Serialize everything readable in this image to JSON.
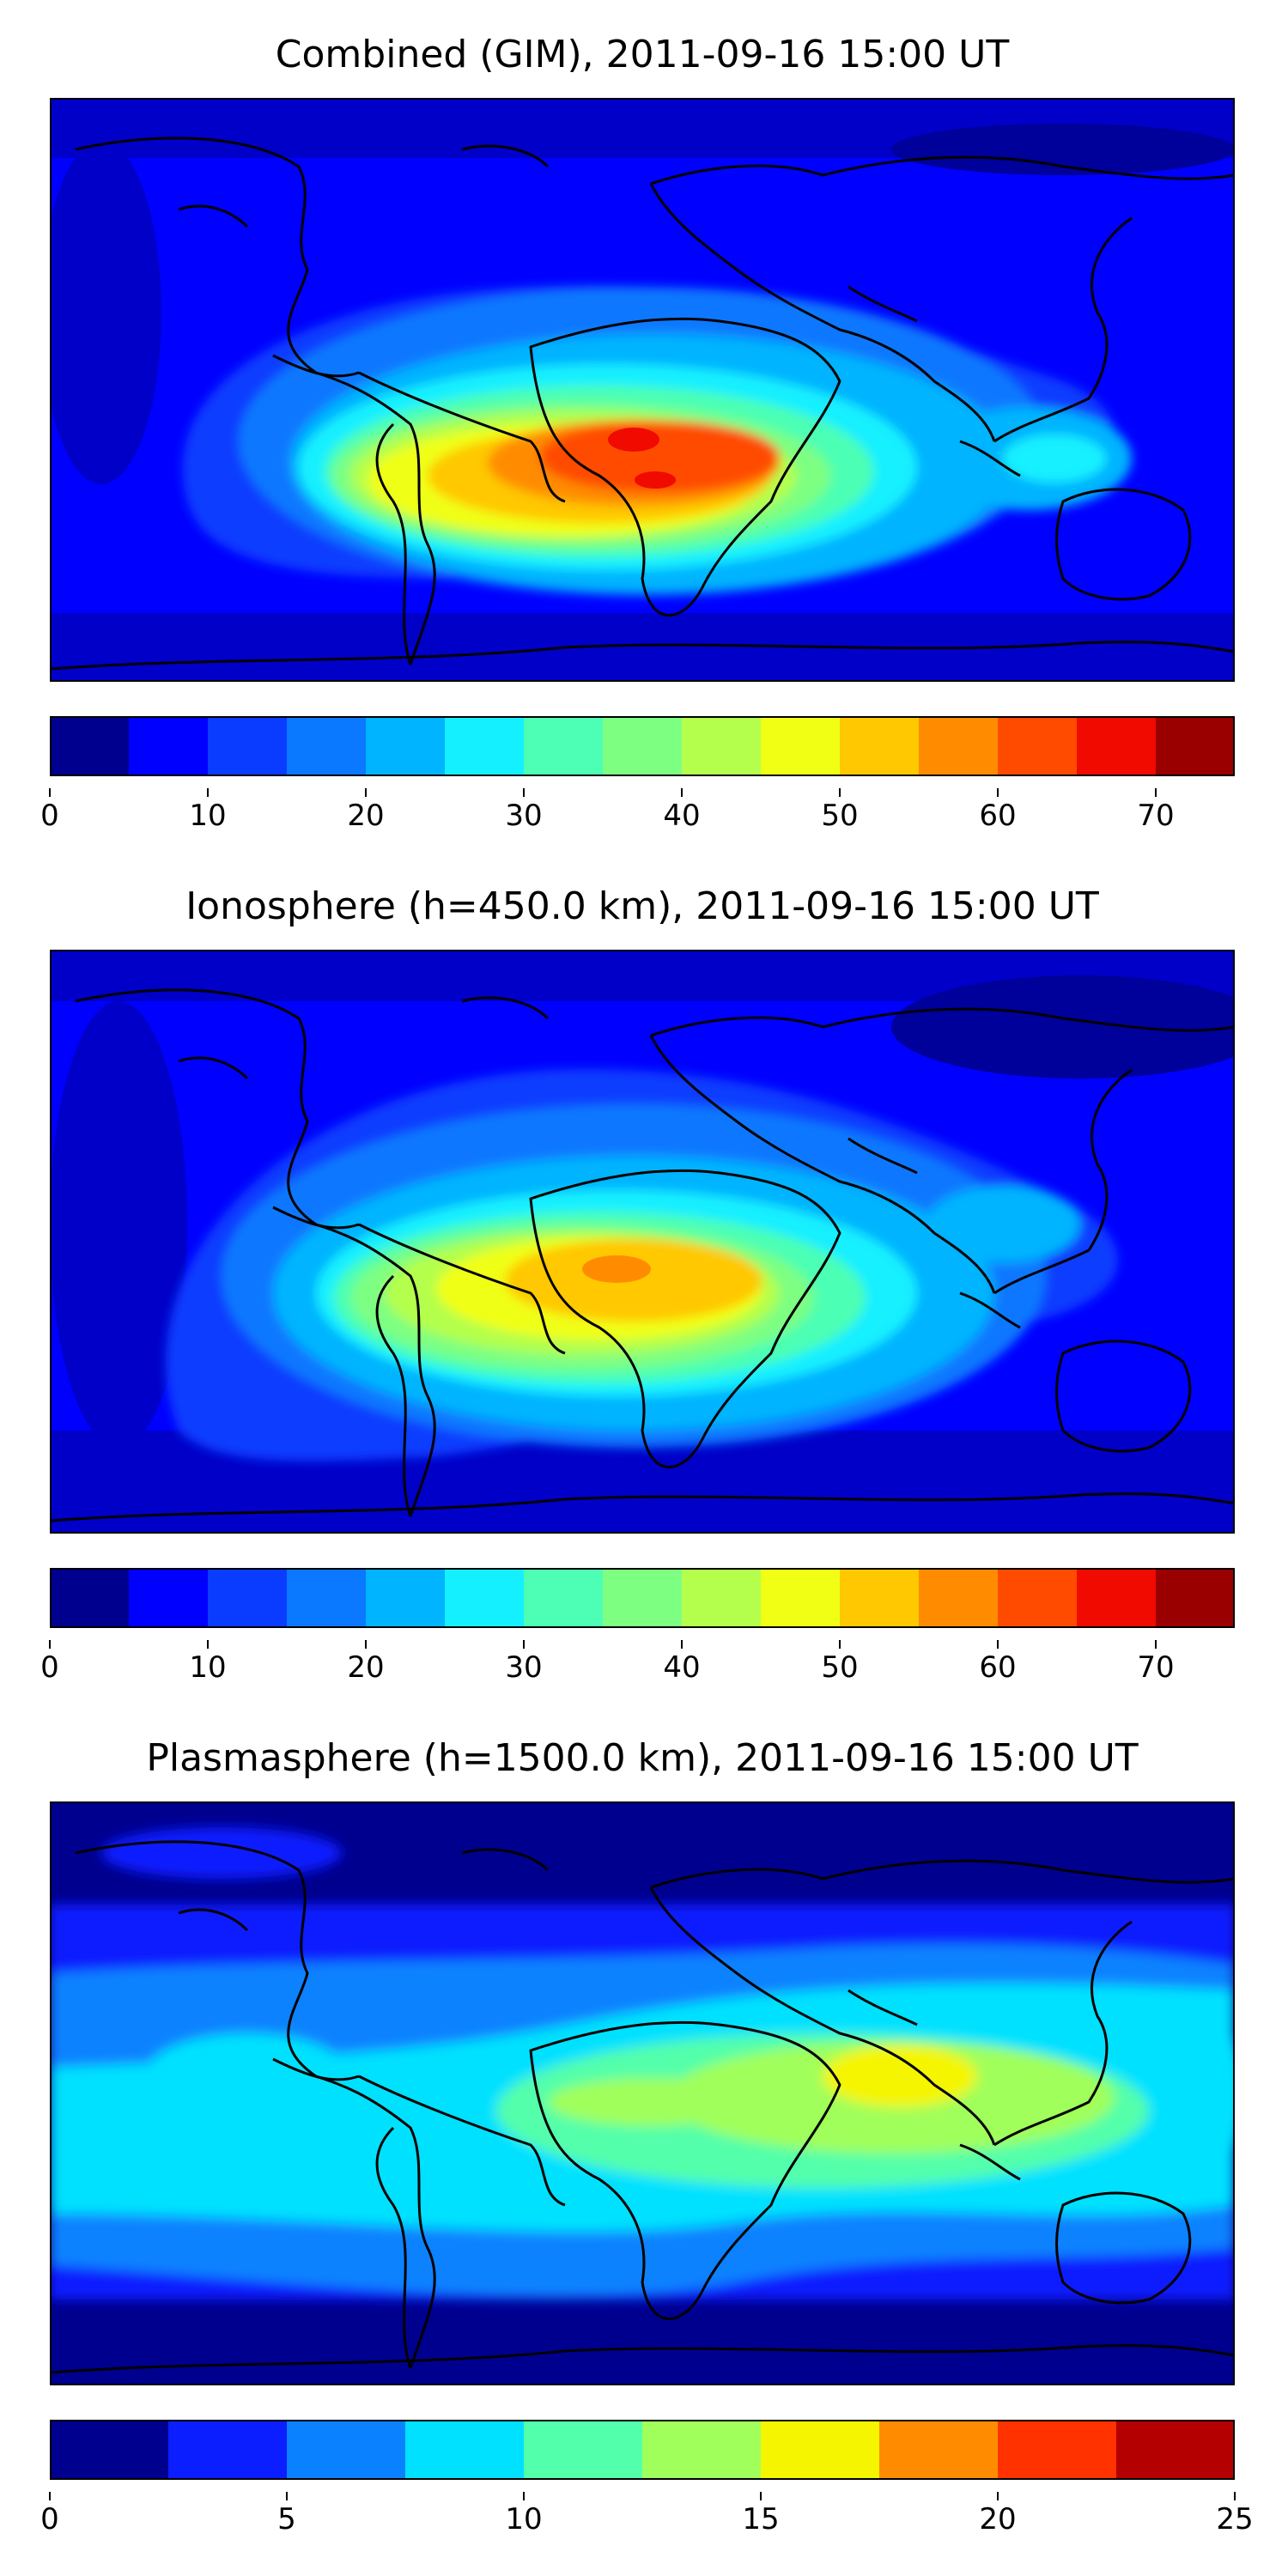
{
  "chart_data": [
    {
      "type": "contour-map",
      "title": "Combined (GIM), 2011-09-16 15:00 UT",
      "colorbar": {
        "range": [
          0,
          75
        ],
        "level_step": 5,
        "tick_values": [
          0,
          10,
          20,
          30,
          40,
          50,
          60,
          70
        ],
        "tick_labels": [
          "0",
          "10",
          "20",
          "30",
          "40",
          "50",
          "60",
          "70"
        ]
      },
      "max_value_approx": 67,
      "peak_region": "equatorial West Africa / Gulf of Guinea",
      "colormap": [
        "#00008f",
        "#0000ff",
        "#0a3cff",
        "#0a78ff",
        "#00b4ff",
        "#14f0ff",
        "#4cffb4",
        "#7dff82",
        "#b4ff4c",
        "#f0ff14",
        "#ffc800",
        "#ff8c00",
        "#ff4b00",
        "#f00a00",
        "#9b0000"
      ]
    },
    {
      "type": "contour-map",
      "title": "Ionosphere  (h=450.0 km), 2011-09-16 15:00 UT",
      "colorbar": {
        "range": [
          0,
          75
        ],
        "level_step": 5,
        "tick_values": [
          0,
          10,
          20,
          30,
          40,
          50,
          60,
          70
        ],
        "tick_labels": [
          "0",
          "10",
          "20",
          "30",
          "40",
          "50",
          "60",
          "70"
        ]
      },
      "max_value_approx": 57,
      "peak_region": "equatorial West Africa",
      "colormap": [
        "#00008f",
        "#0000ff",
        "#0a3cff",
        "#0a78ff",
        "#00b4ff",
        "#14f0ff",
        "#4cffb4",
        "#7dff82",
        "#b4ff4c",
        "#f0ff14",
        "#ffc800",
        "#ff8c00",
        "#ff4b00",
        "#f00a00",
        "#9b0000"
      ]
    },
    {
      "type": "contour-map",
      "title": "Plasmasphere (h=1500.0 km), 2011-09-16 15:00 UT",
      "colorbar": {
        "range": [
          0,
          25
        ],
        "level_step": 2.5,
        "tick_values": [
          0,
          5,
          10,
          15,
          20,
          25
        ],
        "tick_labels": [
          "0",
          "5",
          "10",
          "15",
          "20",
          "25"
        ]
      },
      "max_value_approx": 16,
      "peak_region": "Indian Ocean / South Asia",
      "colormap": [
        "#00008f",
        "#0a1eff",
        "#0a82ff",
        "#00e1ff",
        "#52ffaa",
        "#a0ff5a",
        "#f5f500",
        "#ff8c00",
        "#ff3200",
        "#b40000"
      ]
    }
  ]
}
